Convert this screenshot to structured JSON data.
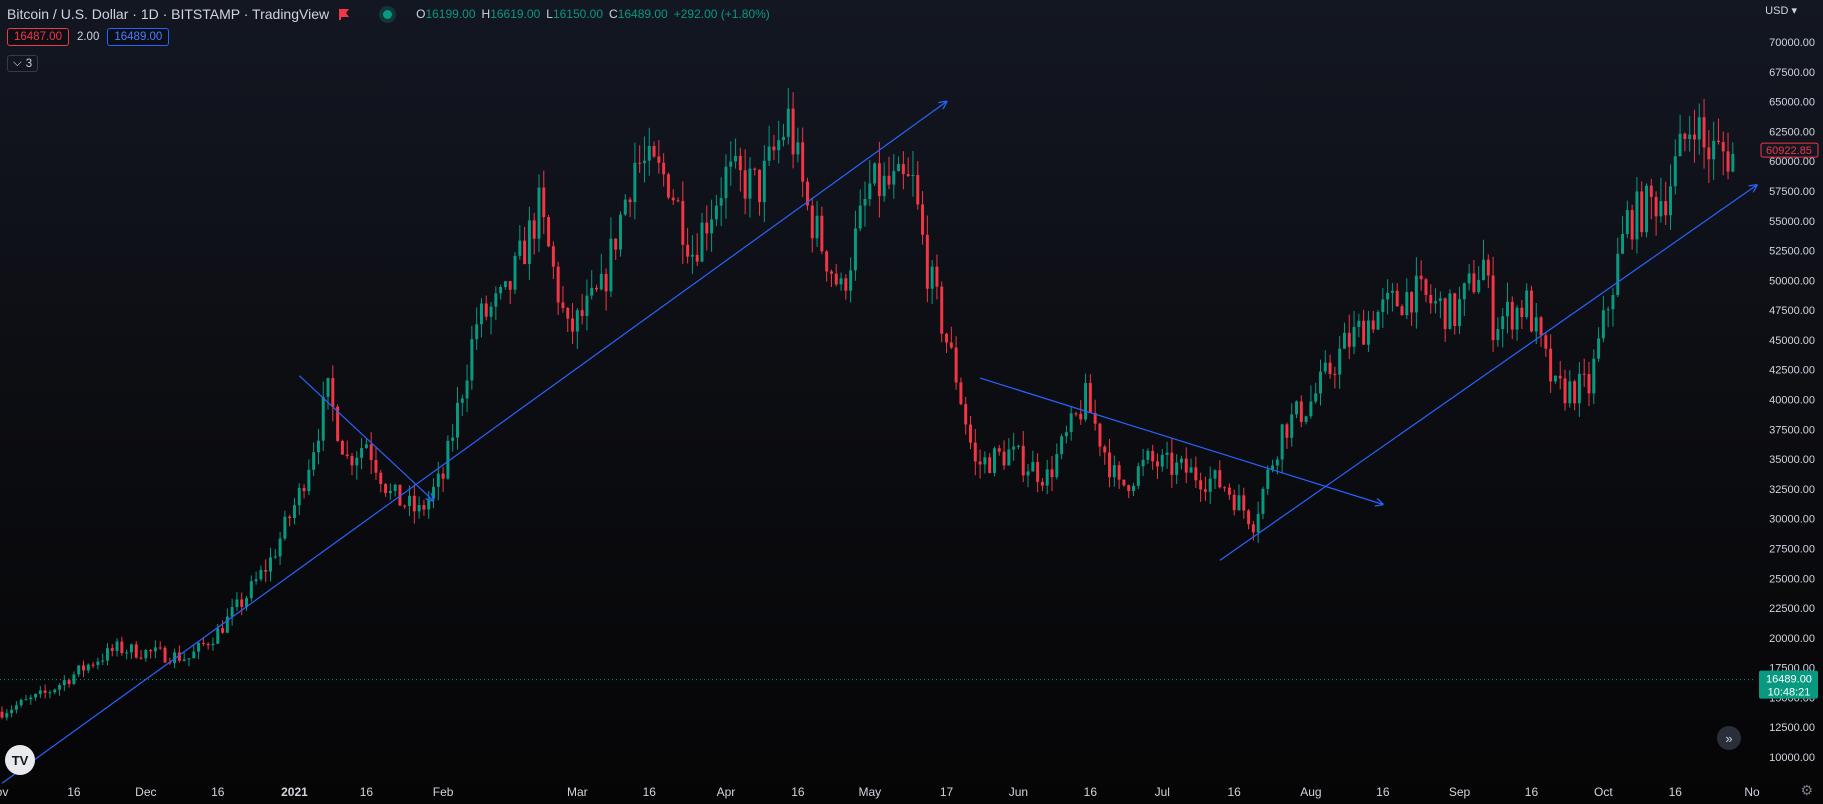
{
  "header": {
    "title": "Bitcoin / U.S. Dollar · 1D · BITSTAMP · TradingView",
    "ohlc": [
      {
        "key": "O",
        "value": "16199.00"
      },
      {
        "key": "H",
        "value": "16619.00"
      },
      {
        "key": "L",
        "value": "16150.00"
      },
      {
        "key": "C",
        "value": "16489.00"
      }
    ],
    "change": "+292.00 (+1.80%)",
    "sell_price": "16487.00",
    "spread": "2.00",
    "buy_price": "16489.00",
    "indicators_count": "3",
    "currency": "USD"
  },
  "price_labels": {
    "high_marker": "60922.85",
    "current_price": "16489.00",
    "countdown": "10:48:21"
  },
  "colors": {
    "up": "#089981",
    "down": "#f23645",
    "drawing": "#2962ff",
    "axis_text": "#d1d4dc"
  },
  "chart_data": {
    "type": "candlestick",
    "x": {
      "start": "2020-11-01",
      "end": "2021-11-01"
    },
    "ylim": [
      7500,
      72500
    ],
    "y_ticks": [
      10000,
      12500,
      15000,
      17500,
      20000,
      22500,
      25000,
      27500,
      30000,
      32500,
      35000,
      37500,
      40000,
      42500,
      45000,
      47500,
      50000,
      52500,
      55000,
      57500,
      60000,
      62500,
      65000,
      67500,
      70000
    ],
    "y_tick_labels": [
      "10000.00",
      "12500.00",
      "15000.00",
      "17500.00",
      "20000.00",
      "22500.00",
      "25000.00",
      "27500.00",
      "30000.00",
      "32500.00",
      "35000.00",
      "37500.00",
      "40000.00",
      "42500.00",
      "45000.00",
      "47500.00",
      "50000.00",
      "52500.00",
      "55000.00",
      "57500.00",
      "60000.00",
      "62500.00",
      "65000.00",
      "67500.00",
      "70000.00"
    ],
    "x_ticks": [
      {
        "label": "ov",
        "date": "2020-11-01"
      },
      {
        "label": "16",
        "date": "2020-11-16"
      },
      {
        "label": "Dec",
        "date": "2020-12-01"
      },
      {
        "label": "16",
        "date": "2020-12-16"
      },
      {
        "label": "2021",
        "date": "2021-01-01",
        "bold": true
      },
      {
        "label": "16",
        "date": "2021-01-16"
      },
      {
        "label": "Feb",
        "date": "2021-02-01"
      },
      {
        "label": "Mar",
        "date": "2021-03-01"
      },
      {
        "label": "16",
        "date": "2021-03-16"
      },
      {
        "label": "Apr",
        "date": "2021-04-01"
      },
      {
        "label": "16",
        "date": "2021-04-16"
      },
      {
        "label": "May",
        "date": "2021-05-01"
      },
      {
        "label": "17",
        "date": "2021-05-17"
      },
      {
        "label": "Jun",
        "date": "2021-06-01"
      },
      {
        "label": "16",
        "date": "2021-06-16"
      },
      {
        "label": "Jul",
        "date": "2021-07-01"
      },
      {
        "label": "16",
        "date": "2021-07-16"
      },
      {
        "label": "Aug",
        "date": "2021-08-01"
      },
      {
        "label": "16",
        "date": "2021-08-16"
      },
      {
        "label": "Sep",
        "date": "2021-09-01"
      },
      {
        "label": "16",
        "date": "2021-09-16"
      },
      {
        "label": "Oct",
        "date": "2021-10-01"
      },
      {
        "label": "16",
        "date": "2021-10-16"
      },
      {
        "label": "No",
        "date": "2021-11-01"
      }
    ],
    "price_path": [
      [
        "2020-11-01",
        13800
      ],
      [
        "2020-11-10",
        15300
      ],
      [
        "2020-11-20",
        18000
      ],
      [
        "2020-11-25",
        19100
      ],
      [
        "2020-12-01",
        18800
      ],
      [
        "2020-12-10",
        18300
      ],
      [
        "2020-12-16",
        20500
      ],
      [
        "2020-12-22",
        23500
      ],
      [
        "2020-12-27",
        26500
      ],
      [
        "2021-01-02",
        32000
      ],
      [
        "2021-01-08",
        40500
      ],
      [
        "2021-01-12",
        35000
      ],
      [
        "2021-01-16",
        36500
      ],
      [
        "2021-01-21",
        32000
      ],
      [
        "2021-01-27",
        30500
      ],
      [
        "2021-02-01",
        33500
      ],
      [
        "2021-02-08",
        46500
      ],
      [
        "2021-02-14",
        48500
      ],
      [
        "2021-02-21",
        56000
      ],
      [
        "2021-02-27",
        45500
      ],
      [
        "2021-03-06",
        49000
      ],
      [
        "2021-03-13",
        60000
      ],
      [
        "2021-03-20",
        58500
      ],
      [
        "2021-03-25",
        52500
      ],
      [
        "2021-04-01",
        58800
      ],
      [
        "2021-04-08",
        57800
      ],
      [
        "2021-04-14",
        63500
      ],
      [
        "2021-04-18",
        56000
      ],
      [
        "2021-04-25",
        49000
      ],
      [
        "2021-05-01",
        57800
      ],
      [
        "2021-05-10",
        58000
      ],
      [
        "2021-05-13",
        51000
      ],
      [
        "2021-05-19",
        42000
      ],
      [
        "2021-05-23",
        34500
      ],
      [
        "2021-05-30",
        35500
      ],
      [
        "2021-06-07",
        33500
      ],
      [
        "2021-06-15",
        40000
      ],
      [
        "2021-06-22",
        32500
      ],
      [
        "2021-06-28",
        34800
      ],
      [
        "2021-07-06",
        34000
      ],
      [
        "2021-07-14",
        32800
      ],
      [
        "2021-07-20",
        29800
      ],
      [
        "2021-07-26",
        37500
      ],
      [
        "2021-08-01",
        39800
      ],
      [
        "2021-08-08",
        44500
      ],
      [
        "2021-08-14",
        47000
      ],
      [
        "2021-08-22",
        49000
      ],
      [
        "2021-08-31",
        47100
      ],
      [
        "2021-09-06",
        51500
      ],
      [
        "2021-09-08",
        46500
      ],
      [
        "2021-09-15",
        48000
      ],
      [
        "2021-09-21",
        40700
      ],
      [
        "2021-09-28",
        41000
      ],
      [
        "2021-10-06",
        55000
      ],
      [
        "2021-10-14",
        57300
      ],
      [
        "2021-10-20",
        64000
      ],
      [
        "2021-10-22",
        61000
      ],
      [
        "2021-10-28",
        60500
      ]
    ],
    "drawings": [
      {
        "name": "uptrend-arrow-1",
        "from": [
          "2020-11-01",
          7800
        ],
        "to": [
          "2021-05-17",
          65000
        ],
        "arrow": true
      },
      {
        "name": "downtrend-arrow-jan",
        "from": [
          "2021-01-02",
          42000
        ],
        "to": [
          "2021-01-30",
          31500
        ],
        "arrow": true
      },
      {
        "name": "downtrend-arrow-summer",
        "from": [
          "2021-05-24",
          41800
        ],
        "to": [
          "2021-08-16",
          31200
        ],
        "arrow": true
      },
      {
        "name": "uptrend-arrow-2",
        "from": [
          "2021-07-13",
          26500
        ],
        "to": [
          "2021-11-02",
          58000
        ],
        "arrow": true
      }
    ]
  }
}
